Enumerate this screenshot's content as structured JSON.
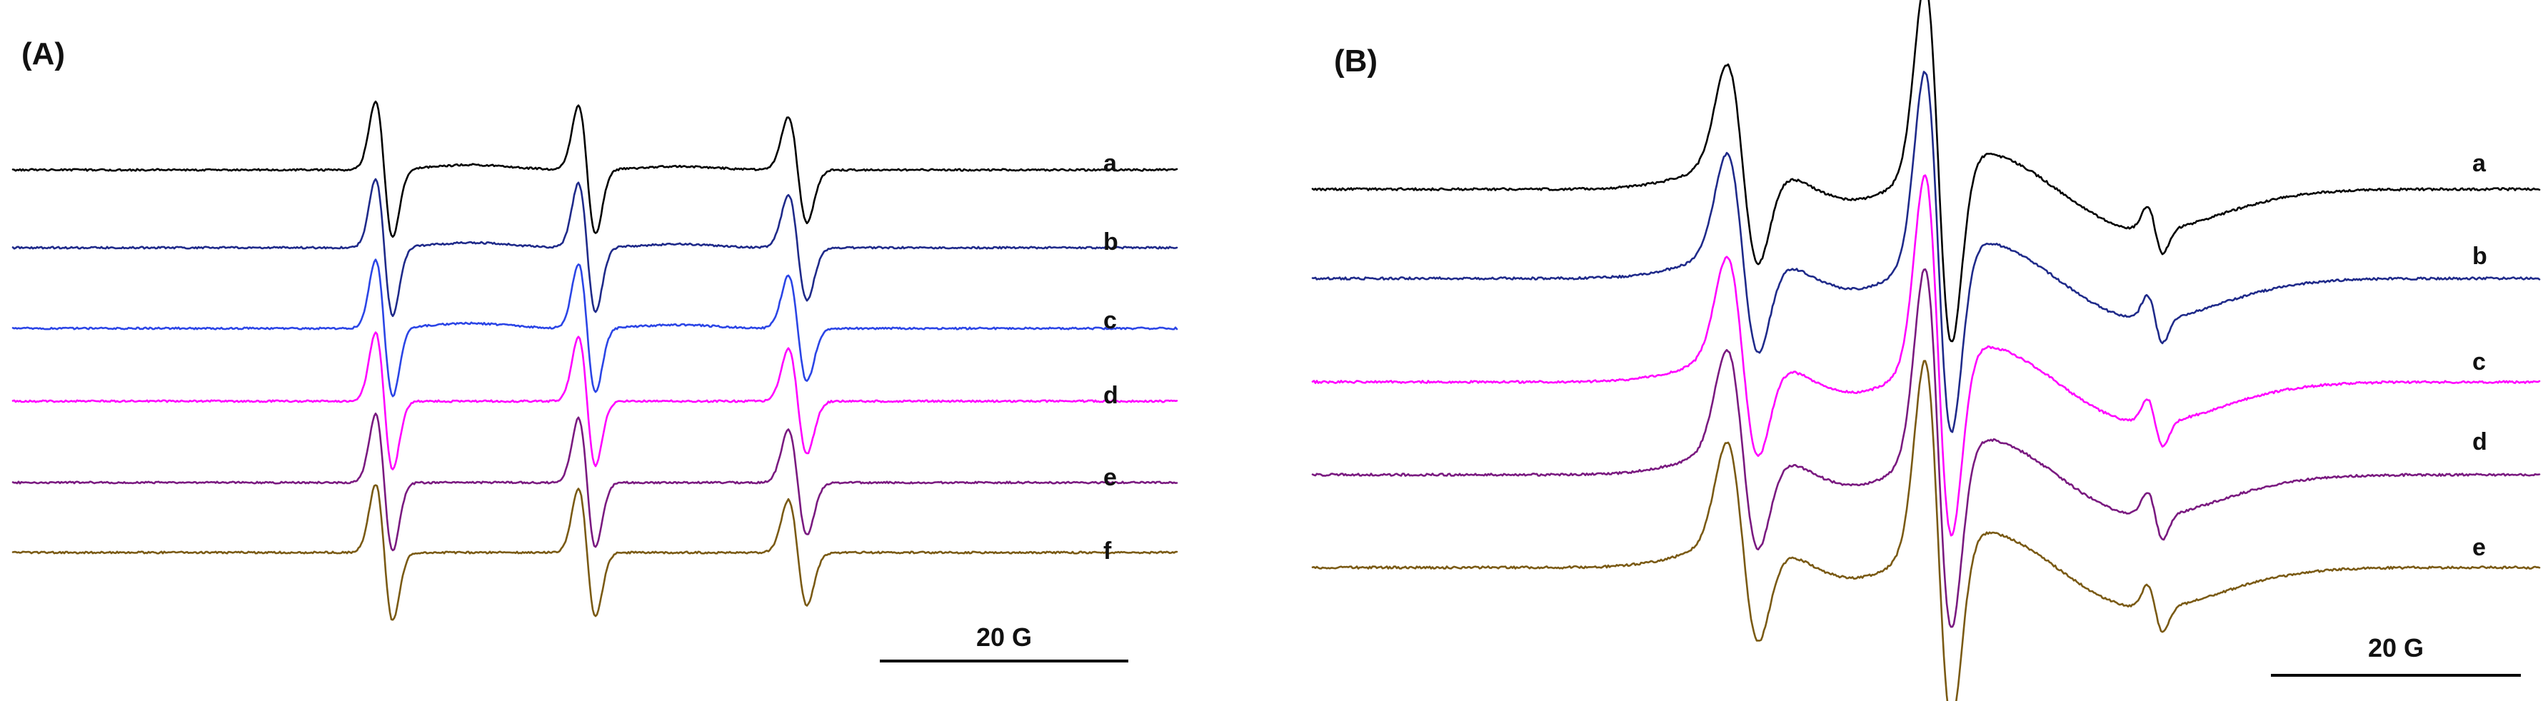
{
  "chart_data": [
    {
      "type": "line",
      "panel_label": "(A)",
      "series": [
        {
          "label": "a",
          "color": "#000000"
        },
        {
          "label": "b",
          "color": "#1f2a8a"
        },
        {
          "label": "c",
          "color": "#2b45e6"
        },
        {
          "label": "d",
          "color": "#ff00ff"
        },
        {
          "label": "e",
          "color": "#7a1a80"
        },
        {
          "label": "f",
          "color": "#7a5a14"
        }
      ],
      "scale_bar": {
        "label": "20 G"
      }
    },
    {
      "type": "line",
      "panel_label": "(B)",
      "series": [
        {
          "label": "a",
          "color": "#000000"
        },
        {
          "label": "b",
          "color": "#1f2a8a"
        },
        {
          "label": "c",
          "color": "#ff00ff"
        },
        {
          "label": "d",
          "color": "#7a1a80"
        },
        {
          "label": "e",
          "color": "#7a5a14"
        }
      ],
      "scale_bar": {
        "label": "20 G"
      }
    }
  ]
}
